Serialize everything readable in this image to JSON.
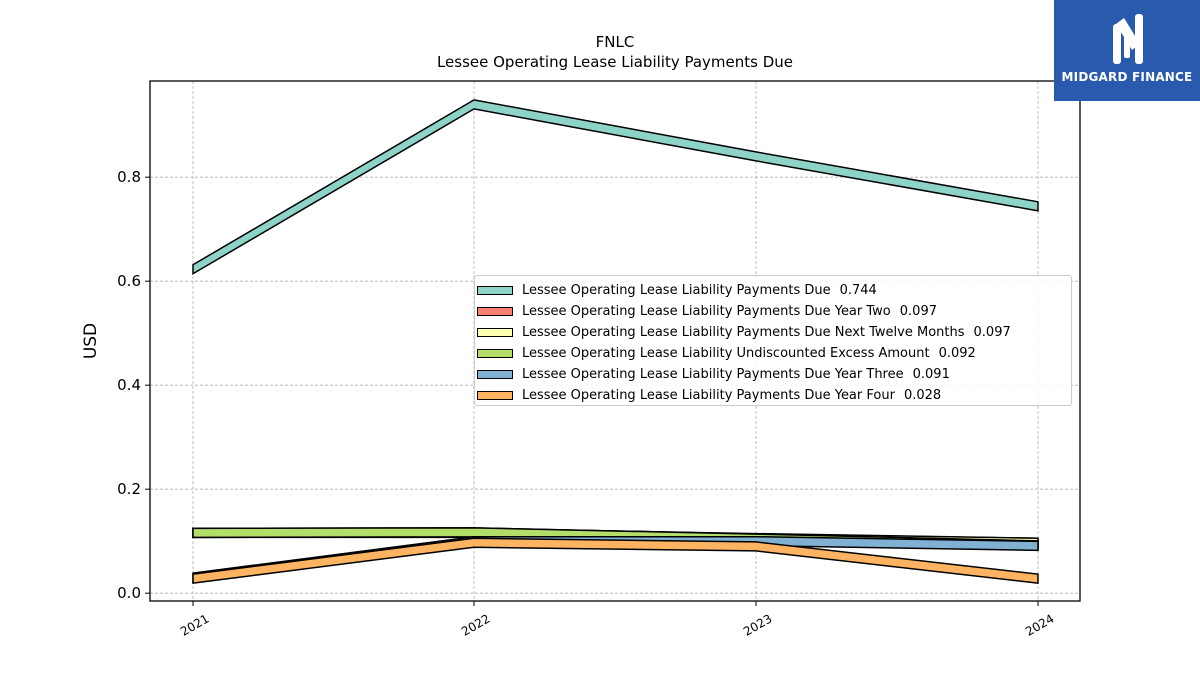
{
  "chart_data": {
    "type": "area",
    "title": "FNLC",
    "subtitle": "Lessee Operating Lease Liability Payments Due",
    "ylabel": "USD",
    "xlabel": "",
    "x": [
      "2021",
      "2022",
      "2023",
      "2024"
    ],
    "ylim": [
      -0.015,
      0.985
    ],
    "yticks": [
      0.0,
      0.2,
      0.4,
      0.6,
      0.8
    ],
    "ytick_labels": [
      "0.0",
      "0.2",
      "0.4",
      "0.6",
      "0.8"
    ],
    "grid": true,
    "legend_position": "center-right",
    "series": [
      {
        "name": "Lessee Operating Lease Liability Payments Due",
        "legend_value": "0.744",
        "values": [
          0.623,
          0.94,
          0.84,
          0.744
        ],
        "color": "#8dd3c7"
      },
      {
        "name": "Lessee Operating Lease Liability Payments Due Year Two",
        "legend_value": "0.097",
        "values": [
          0.116,
          0.117,
          0.105,
          0.097
        ],
        "color": "#fb8072"
      },
      {
        "name": "Lessee Operating Lease Liability Payments Due Next Twelve Months",
        "legend_value": "0.097",
        "values": [
          0.116,
          0.116,
          0.106,
          0.097
        ],
        "color": "#ffffb3"
      },
      {
        "name": "Lessee Operating Lease Liability Undiscounted Excess Amount",
        "legend_value": "0.092",
        "values": [
          0.116,
          0.117,
          0.105,
          0.092
        ],
        "color": "#b3de69"
      },
      {
        "name": "Lessee Operating Lease Liability Payments Due Year Three",
        "legend_value": "0.091",
        "values": [
          0.03,
          0.1,
          0.1,
          0.091
        ],
        "color": "#80b1d3"
      },
      {
        "name": "Lessee Operating Lease Liability Payments Due Year Four",
        "legend_value": "0.028",
        "values": [
          0.028,
          0.097,
          0.09,
          0.028
        ],
        "color": "#fdb462"
      }
    ]
  },
  "logo": {
    "text": "MIDGARD FINANCE",
    "background": "#2a5aae"
  }
}
